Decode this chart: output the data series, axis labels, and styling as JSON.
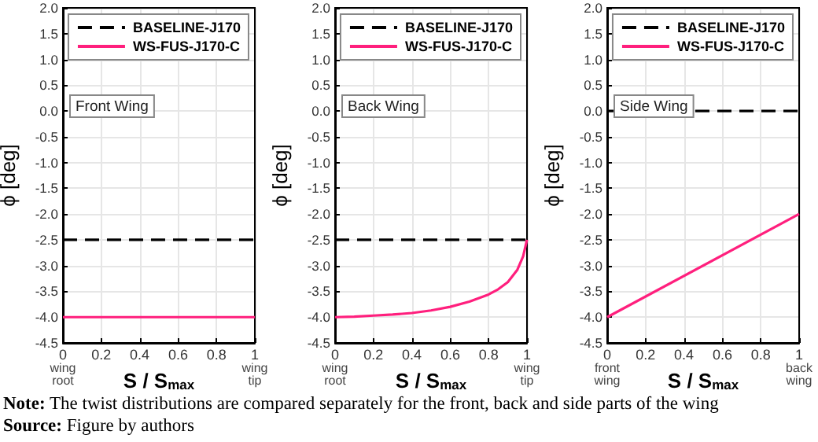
{
  "chart_data": [
    {
      "type": "line",
      "title": "Front Wing",
      "xlabel": "S / S$_{max}$",
      "ylabel": "ϕ [deg]",
      "xlim": [
        0,
        1
      ],
      "ylim": [
        -4.5,
        2
      ],
      "xticks": [
        0,
        0.2,
        0.4,
        0.6,
        0.8,
        1
      ],
      "yticks": [
        -4.5,
        {
          "value": -4,
          "label": "-4.0"
        },
        -3.5,
        {
          "value": -3,
          "label": "-3.0"
        },
        -2.5,
        {
          "value": -2,
          "label": "-2.0"
        },
        -1.5,
        {
          "value": -1,
          "label": "-1.0"
        },
        -0.5,
        {
          "value": 0,
          "label": "0.0"
        },
        0.5,
        {
          "value": 1,
          "label": "1.0"
        },
        1.5,
        {
          "value": 2,
          "label": "2.0"
        }
      ],
      "grid": true,
      "legend": "top right",
      "series": [
        {
          "name": "BASELINE-J170",
          "color": "#000000",
          "line_style": "dashed",
          "x": [
            0,
            1
          ],
          "values": [
            -2.5,
            -2.5
          ]
        },
        {
          "name": "WS-FUS-J170-C",
          "color": "#ff1f7d",
          "line_style": "solid",
          "x": [
            0,
            1
          ],
          "values": [
            -4,
            -4
          ]
        }
      ],
      "annotations": [
        "wing root",
        "wing tip"
      ]
    },
    {
      "type": "line",
      "title": "Back Wing",
      "xlabel": "S / S$_{max}$",
      "ylabel": "ϕ [deg]",
      "xlim": [
        0,
        1
      ],
      "ylim": [
        -4.5,
        2
      ],
      "xticks": [
        0,
        0.2,
        0.4,
        0.6,
        0.8,
        1
      ],
      "yticks": [
        -4.5,
        {
          "value": -4,
          "label": "-4.0"
        },
        -3.5,
        {
          "value": -3,
          "label": "-3.0"
        },
        -2.5,
        {
          "value": -2,
          "label": "-2.0"
        },
        -1.5,
        {
          "value": -1,
          "label": "-1.0"
        },
        -0.5,
        {
          "value": 0,
          "label": "0.0"
        },
        0.5,
        {
          "value": 1,
          "label": "1.0"
        },
        1.5,
        {
          "value": 2,
          "label": "2.0"
        }
      ],
      "grid": true,
      "legend": "top right",
      "series": [
        {
          "name": "BASELINE-J170",
          "color": "#000000",
          "line_style": "dashed",
          "x": [
            0,
            1
          ],
          "values": [
            -2.5,
            -2.5
          ]
        },
        {
          "name": "WS-FUS-J170-C",
          "color": "#ff1f7d",
          "line_style": "solid",
          "x": [
            0,
            0.1,
            0.2,
            0.3,
            0.4,
            0.5,
            0.6,
            0.7,
            0.8,
            0.85,
            0.9,
            0.95,
            0.98,
            1
          ],
          "values": [
            -4,
            -3.99,
            -3.97,
            -3.95,
            -3.92,
            -3.87,
            -3.8,
            -3.7,
            -3.56,
            -3.46,
            -3.32,
            -3.08,
            -2.82,
            -2.5
          ]
        }
      ],
      "annotations": [
        "wing root",
        "wing tip"
      ]
    },
    {
      "type": "line",
      "title": "Side Wing",
      "xlabel": "S / S$_{max}$",
      "ylabel": "ϕ [deg]",
      "xlim": [
        0,
        1
      ],
      "ylim": [
        -4.5,
        2
      ],
      "xticks": [
        0,
        0.2,
        0.4,
        0.6,
        0.8,
        1
      ],
      "yticks": [
        -4.5,
        {
          "value": -4,
          "label": "-4.0"
        },
        -3.5,
        {
          "value": -3,
          "label": "-3.0"
        },
        -2.5,
        {
          "value": -2,
          "label": "-2.0"
        },
        -1.5,
        {
          "value": -1,
          "label": "-1.0"
        },
        -0.5,
        {
          "value": 0,
          "label": "0.0"
        },
        0.5,
        {
          "value": 1,
          "label": "1.0"
        },
        1.5,
        {
          "value": 2,
          "label": "2.0"
        }
      ],
      "grid": true,
      "legend": "top right",
      "series": [
        {
          "name": "BASELINE-J170",
          "color": "#000000",
          "line_style": "dashed",
          "x": [
            0,
            1
          ],
          "values": [
            0,
            0
          ]
        },
        {
          "name": "WS-FUS-J170-C",
          "color": "#ff1f7d",
          "line_style": "solid",
          "x": [
            0,
            1
          ],
          "values": [
            -4,
            -2
          ]
        }
      ],
      "annotations": [
        "front wing",
        "back wing"
      ]
    },
    {
      "type": "other",
      "annotations": [
        "Note: The twist distributions are compared separately for the front, back and side parts of the wing",
        "Source: Figure by authors"
      ]
    }
  ]
}
